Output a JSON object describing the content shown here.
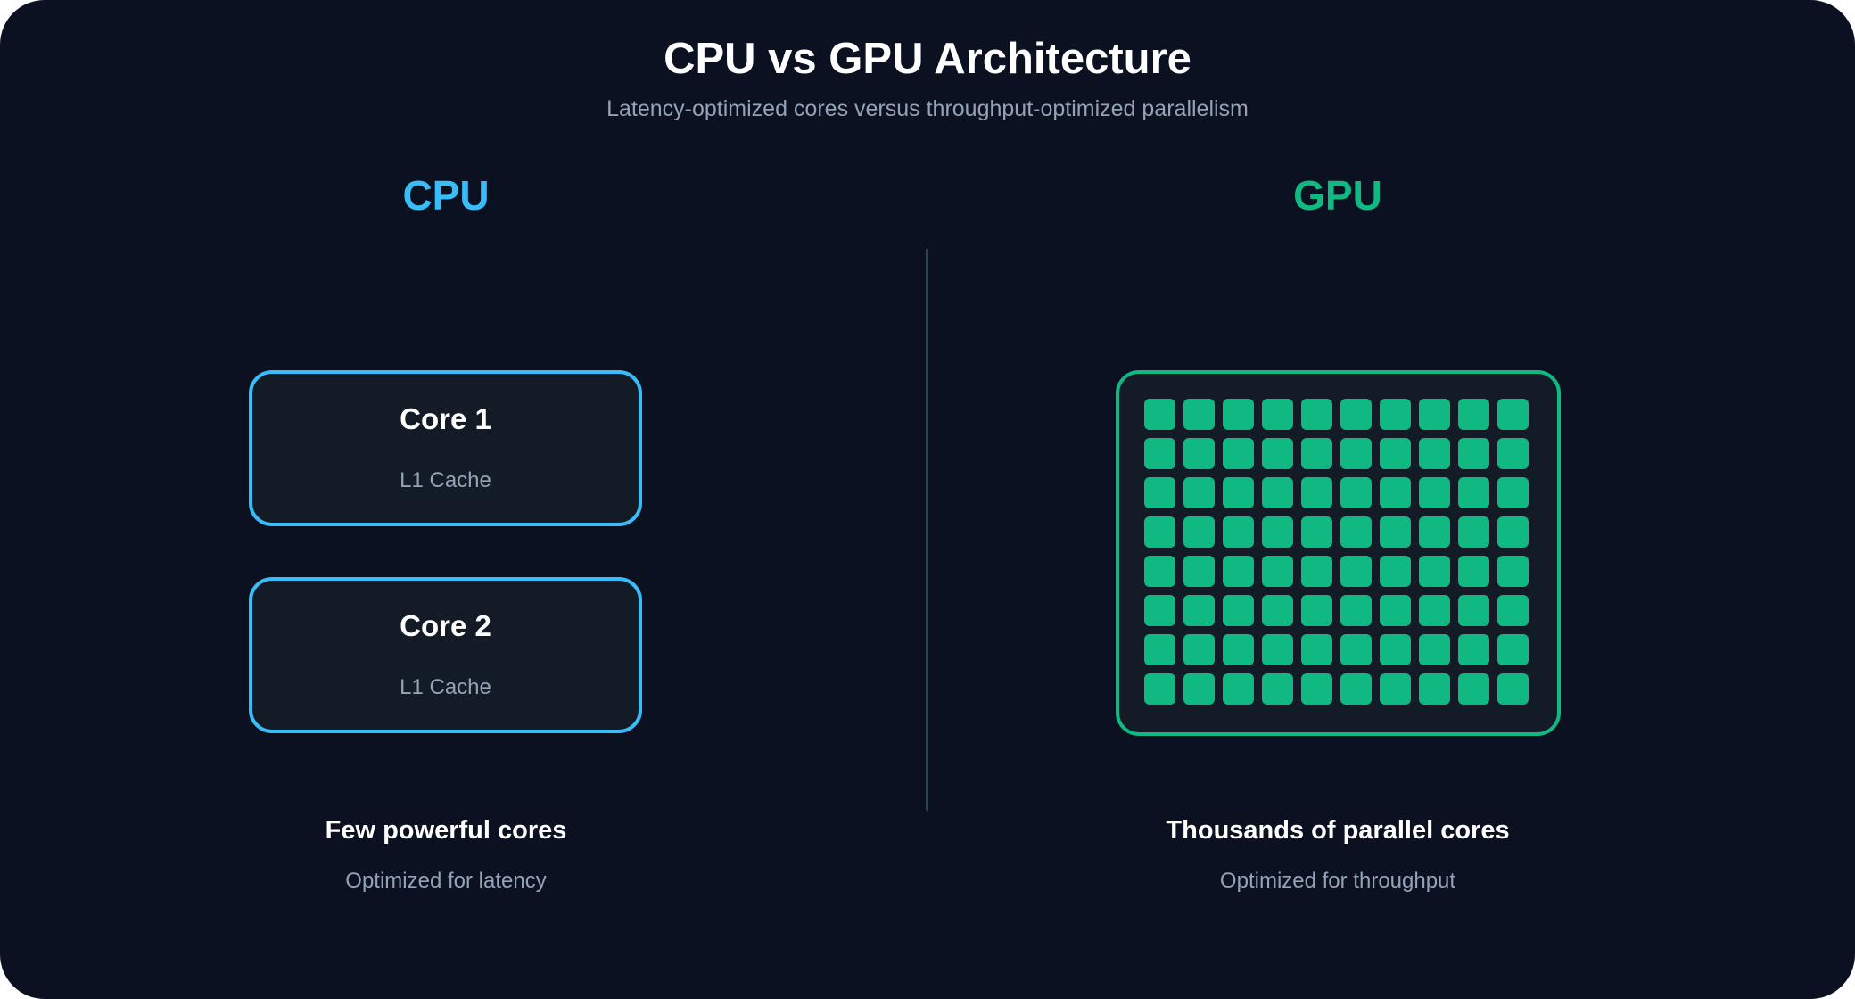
{
  "title": "CPU vs GPU Architecture",
  "subtitle": "Latency-optimized cores versus throughput-optimized parallelism",
  "colors": {
    "background": "#0b1120",
    "cpu_accent": "#38bdf8",
    "gpu_accent": "#10b981",
    "box_fill": "#131b26",
    "muted_text": "#94a3b8"
  },
  "cpu": {
    "heading": "CPU",
    "cores": [
      {
        "label": "Core 1",
        "cache": "L1 Cache"
      },
      {
        "label": "Core 2",
        "cache": "L1 Cache"
      }
    ],
    "caption": "Few powerful cores",
    "caption_sub": "Optimized for latency"
  },
  "gpu": {
    "heading": "GPU",
    "grid": {
      "rows": 8,
      "columns": 10
    },
    "caption": "Thousands of parallel cores",
    "caption_sub": "Optimized for throughput"
  }
}
